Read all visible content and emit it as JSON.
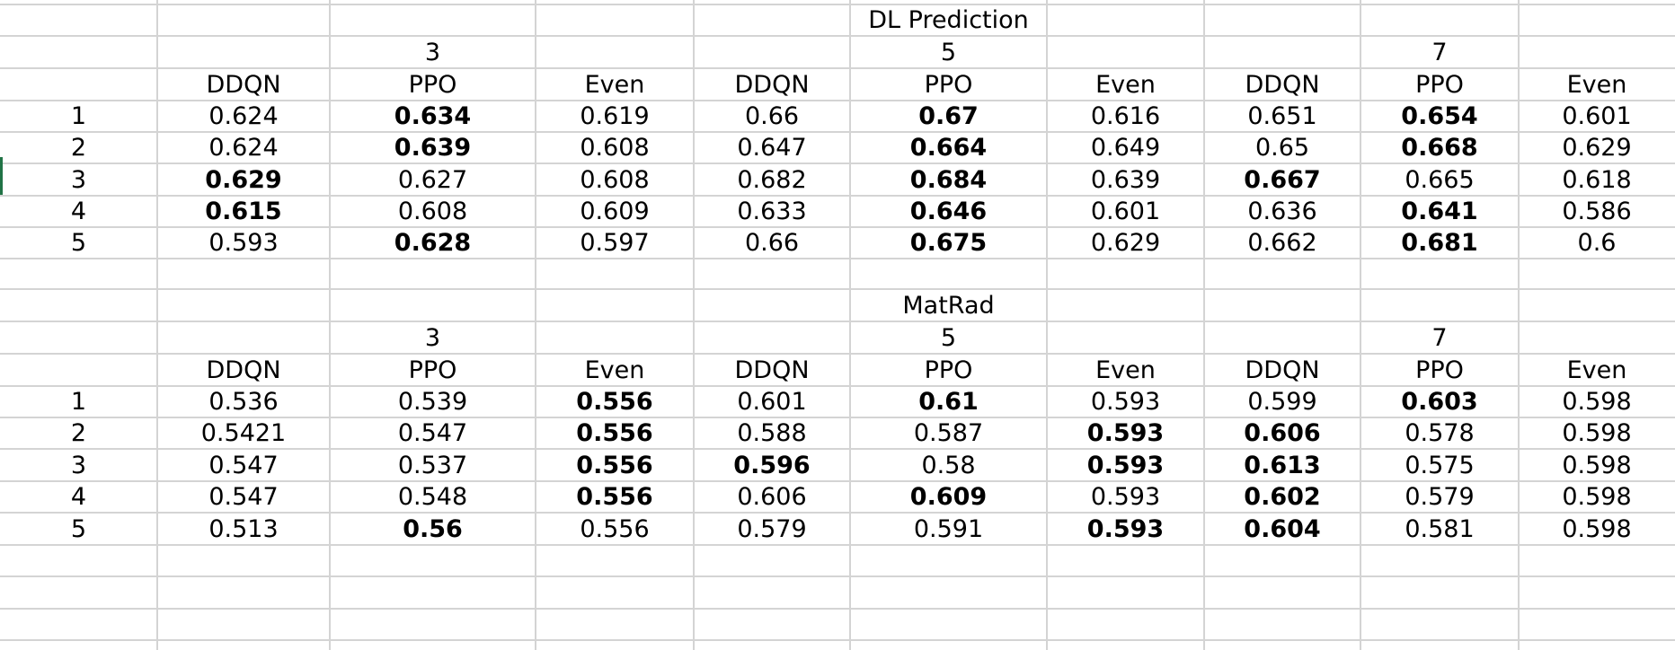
{
  "colors": {
    "gridline": "#d4d4d4",
    "text": "#000000",
    "active_cell_marker": "#217346"
  },
  "tables": [
    {
      "title": "DL Prediction",
      "groups": [
        "3",
        "5",
        "7"
      ],
      "methods": [
        "DDQN",
        "PPO",
        "Even",
        "DDQN",
        "PPO",
        "Even",
        "DDQN",
        "PPO",
        "Even"
      ],
      "rows": [
        {
          "label": "1",
          "values": [
            "0.624",
            "0.634",
            "0.619",
            "0.66",
            "0.67",
            "0.616",
            "0.651",
            "0.654",
            "0.601"
          ],
          "bold": [
            false,
            true,
            false,
            false,
            true,
            false,
            false,
            true,
            false
          ]
        },
        {
          "label": "2",
          "values": [
            "0.624",
            "0.639",
            "0.608",
            "0.647",
            "0.664",
            "0.649",
            "0.65",
            "0.668",
            "0.629"
          ],
          "bold": [
            false,
            true,
            false,
            false,
            true,
            false,
            false,
            true,
            false
          ]
        },
        {
          "label": "3",
          "values": [
            "0.629",
            "0.627",
            "0.608",
            "0.682",
            "0.684",
            "0.639",
            "0.667",
            "0.665",
            "0.618"
          ],
          "bold": [
            true,
            false,
            false,
            false,
            true,
            false,
            true,
            false,
            false
          ]
        },
        {
          "label": "4",
          "values": [
            "0.615",
            "0.608",
            "0.609",
            "0.633",
            "0.646",
            "0.601",
            "0.636",
            "0.641",
            "0.586"
          ],
          "bold": [
            true,
            false,
            false,
            false,
            true,
            false,
            false,
            true,
            false
          ]
        },
        {
          "label": "5",
          "values": [
            "0.593",
            "0.628",
            "0.597",
            "0.66",
            "0.675",
            "0.629",
            "0.662",
            "0.681",
            "0.6"
          ],
          "bold": [
            false,
            true,
            false,
            false,
            true,
            false,
            false,
            true,
            false
          ]
        }
      ]
    },
    {
      "title": "MatRad",
      "groups": [
        "3",
        "5",
        "7"
      ],
      "methods": [
        "DDQN",
        "PPO",
        "Even",
        "DDQN",
        "PPO",
        "Even",
        "DDQN",
        "PPO",
        "Even"
      ],
      "rows": [
        {
          "label": "1",
          "values": [
            "0.536",
            "0.539",
            "0.556",
            "0.601",
            "0.61",
            "0.593",
            "0.599",
            "0.603",
            "0.598"
          ],
          "bold": [
            false,
            false,
            true,
            false,
            true,
            false,
            false,
            true,
            false
          ]
        },
        {
          "label": "2",
          "values": [
            "0.5421",
            "0.547",
            "0.556",
            "0.588",
            "0.587",
            "0.593",
            "0.606",
            "0.578",
            "0.598"
          ],
          "bold": [
            false,
            false,
            true,
            false,
            false,
            true,
            true,
            false,
            false
          ]
        },
        {
          "label": "3",
          "values": [
            "0.547",
            "0.537",
            "0.556",
            "0.596",
            "0.58",
            "0.593",
            "0.613",
            "0.575",
            "0.598"
          ],
          "bold": [
            false,
            false,
            true,
            true,
            false,
            true,
            true,
            false,
            false
          ]
        },
        {
          "label": "4",
          "values": [
            "0.547",
            "0.548",
            "0.556",
            "0.606",
            "0.609",
            "0.593",
            "0.602",
            "0.579",
            "0.598"
          ],
          "bold": [
            false,
            false,
            true,
            false,
            true,
            false,
            true,
            false,
            false
          ]
        },
        {
          "label": "5",
          "values": [
            "0.513",
            "0.56",
            "0.556",
            "0.579",
            "0.591",
            "0.593",
            "0.604",
            "0.581",
            "0.598"
          ],
          "bold": [
            false,
            true,
            false,
            false,
            false,
            true,
            true,
            false,
            false
          ]
        }
      ]
    }
  ]
}
